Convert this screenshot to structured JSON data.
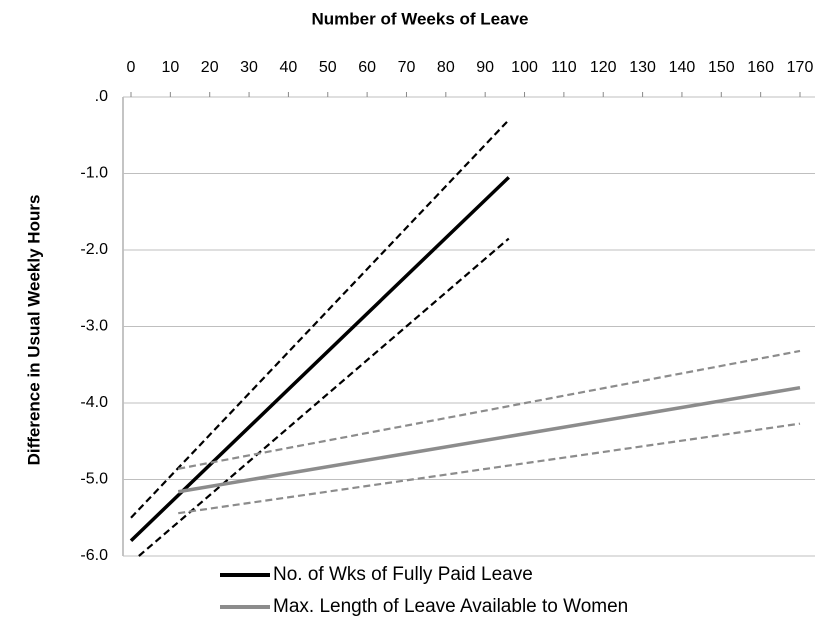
{
  "chart_data": {
    "type": "line",
    "title": "Number of Weeks of Leave",
    "y_label": "Difference in Usual Weekly Hours",
    "xlim": [
      0,
      170
    ],
    "xticks": [
      0,
      10,
      20,
      30,
      40,
      50,
      60,
      70,
      80,
      90,
      100,
      110,
      120,
      130,
      140,
      150,
      160,
      170
    ],
    "ylim": [
      -6,
      0
    ],
    "yticks": [
      {
        "value": 0,
        "label": ".0"
      },
      {
        "value": -1,
        "label": "-1.0"
      },
      {
        "value": -2,
        "label": "-2.0"
      },
      {
        "value": -3,
        "label": "-3.0"
      },
      {
        "value": -4,
        "label": "-4.0"
      },
      {
        "value": -5,
        "label": "-5.0"
      },
      {
        "value": -6,
        "label": "-6.0"
      }
    ],
    "grid": true,
    "x_axis_position": "top",
    "legend": "bottom",
    "series": [
      {
        "name": "No. of Wks of Fully Paid Leave",
        "color": "#000000",
        "x": [
          0,
          96
        ],
        "values": [
          -5.8,
          -1.05
        ]
      },
      {
        "color": "#000000",
        "dashed": true,
        "x": [
          0,
          96
        ],
        "values": [
          -5.5,
          -0.3
        ]
      },
      {
        "color": "#000000",
        "dashed": true,
        "x": [
          2,
          96
        ],
        "values": [
          -6.0,
          -1.85
        ]
      },
      {
        "name": "Max. Length of Leave Available to Women",
        "color": "#8c8c8c",
        "x": [
          12,
          170
        ],
        "values": [
          -5.16,
          -3.8
        ]
      },
      {
        "color": "#8c8c8c",
        "dashed": true,
        "x": [
          12,
          170
        ],
        "values": [
          -4.86,
          -3.32
        ]
      },
      {
        "color": "#8c8c8c",
        "dashed": true,
        "x": [
          12,
          170
        ],
        "values": [
          -5.44,
          -4.27
        ]
      }
    ]
  }
}
